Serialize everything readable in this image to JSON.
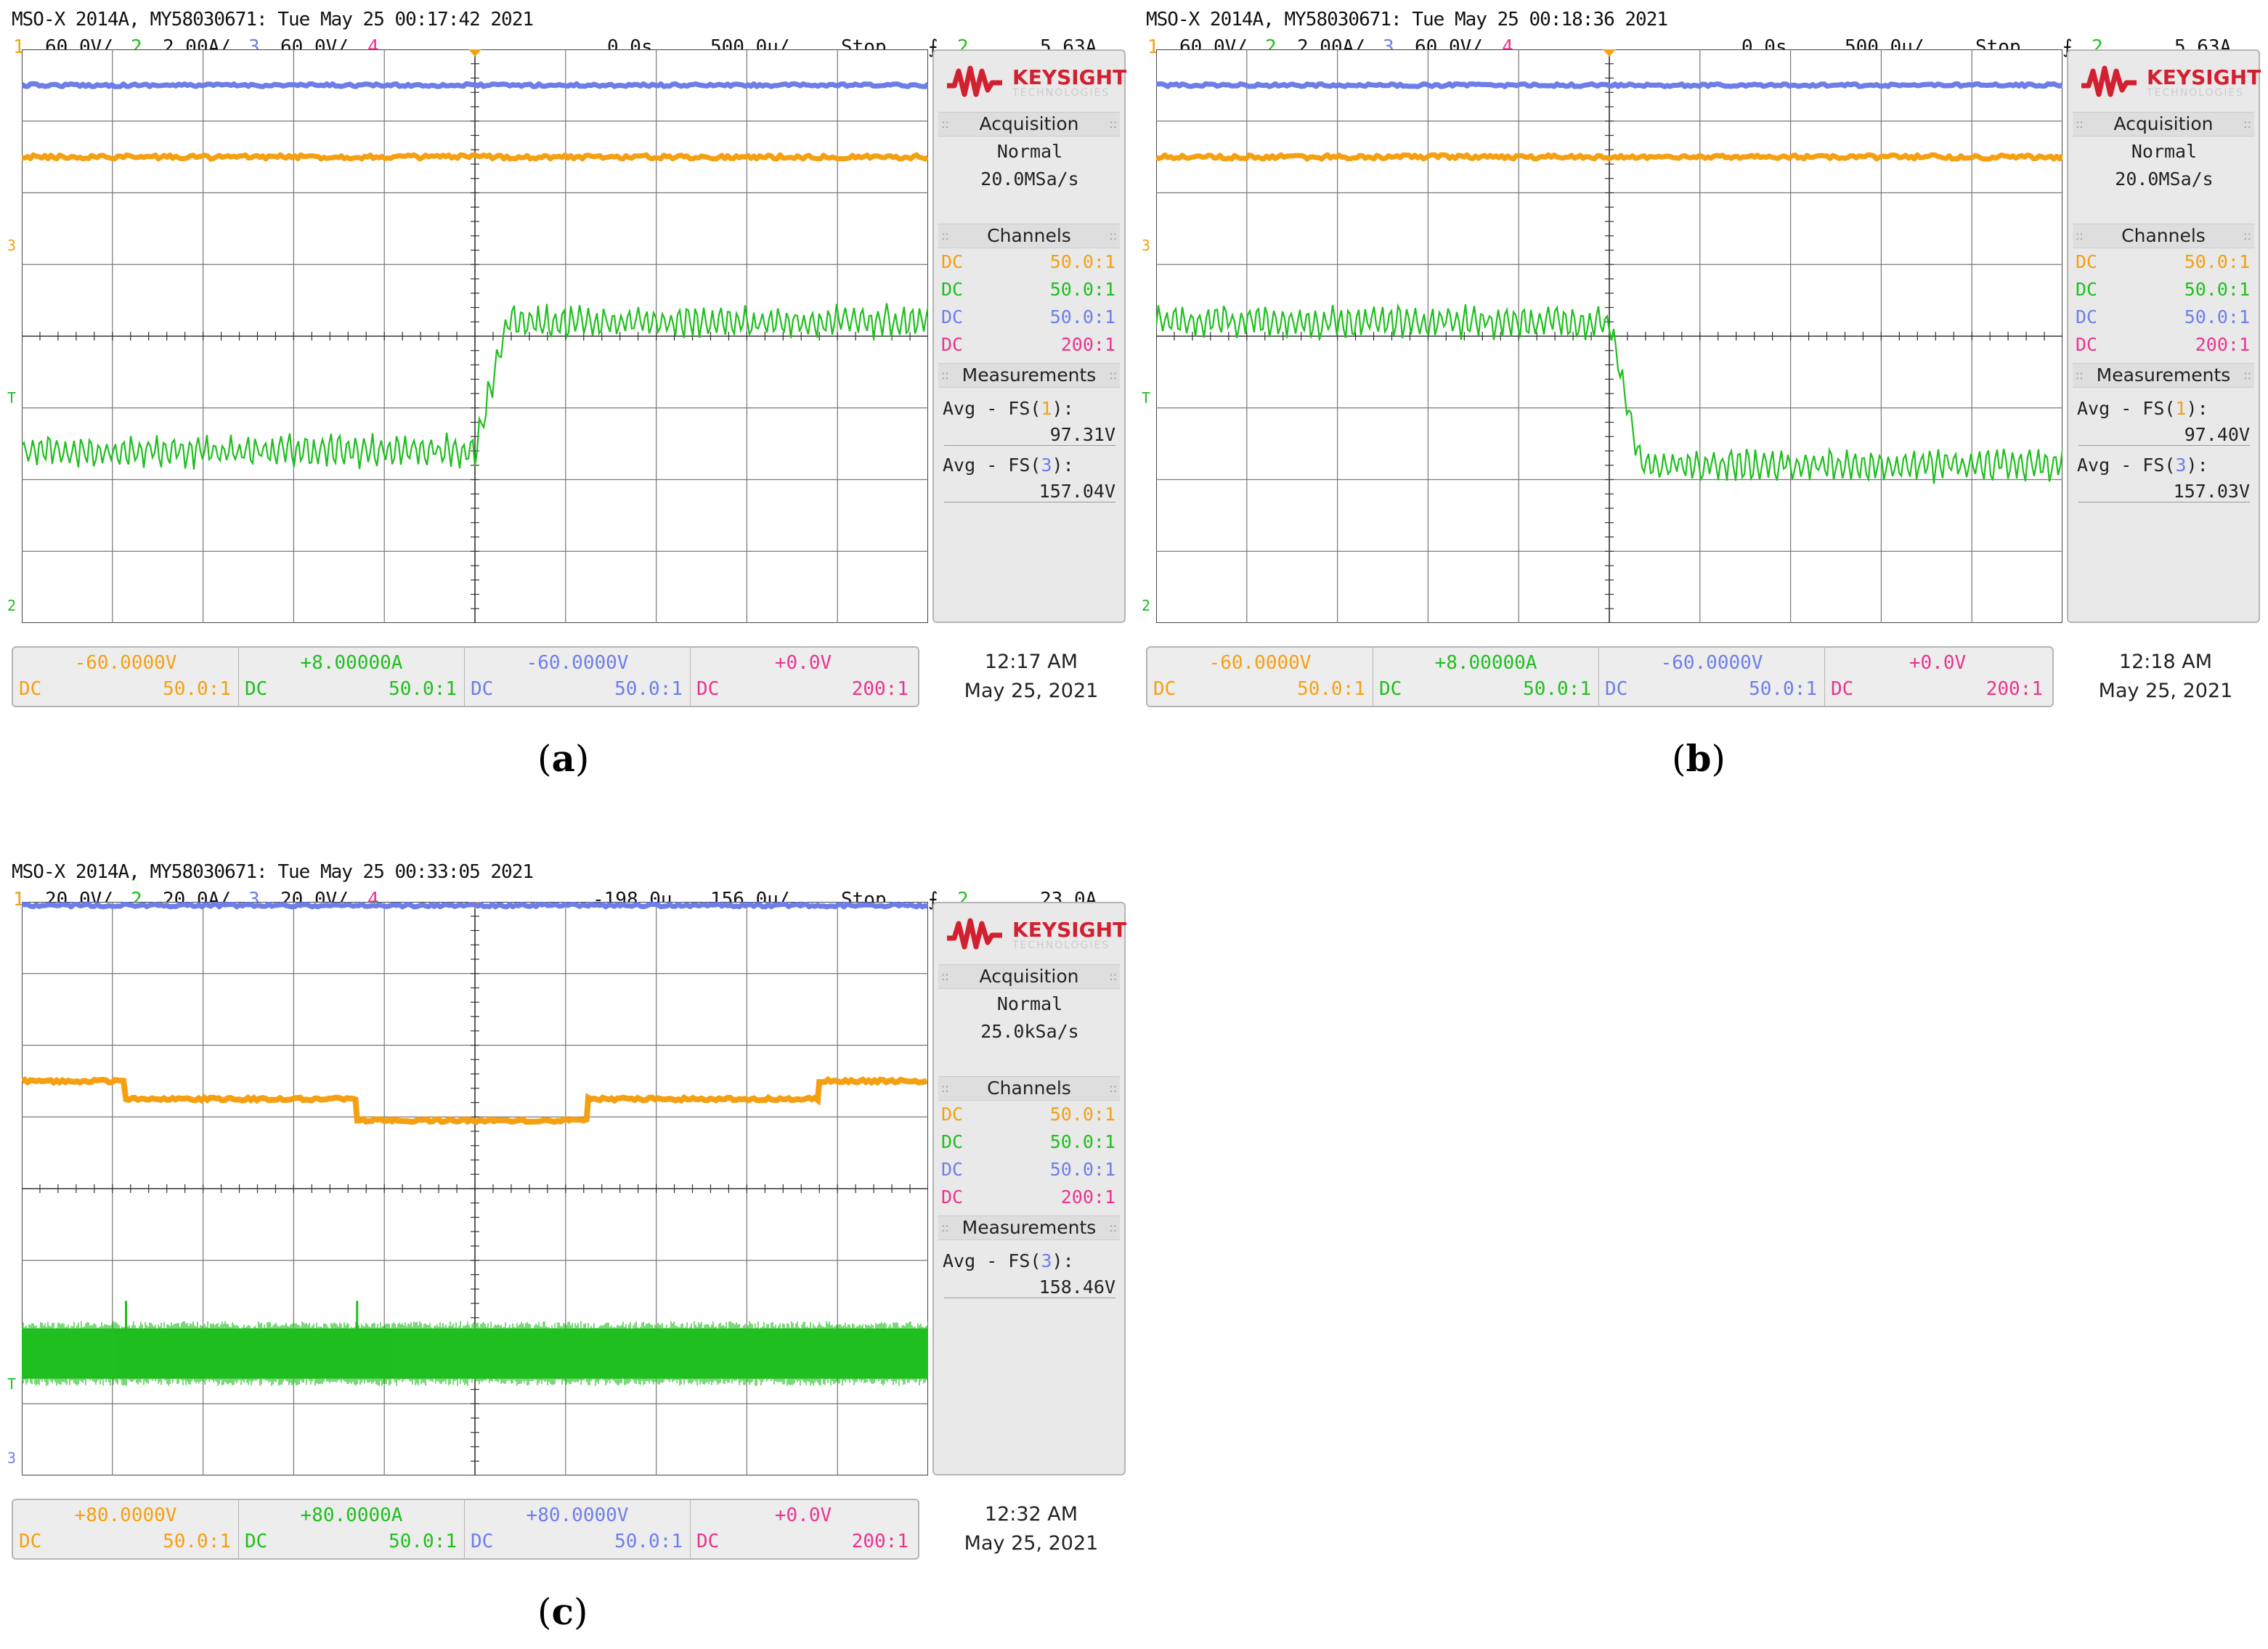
{
  "colors": {
    "ch1": "#f5a012",
    "ch2": "#1fbf1f",
    "ch3": "#6e7ee8",
    "ch4": "#e8358f",
    "grid": "#555555",
    "logo": "#d22030"
  },
  "common": {
    "logo_brand": "KEYSIGHT",
    "logo_sub": "TECHNOLOGIES",
    "acq_title": "Acquisition",
    "acq_mode": "Normal",
    "channels_title": "Channels",
    "meas_title": "Measurements",
    "channel_rows": [
      {
        "coupling": "DC",
        "probe": "50.0:1"
      },
      {
        "coupling": "DC",
        "probe": "50.0:1"
      },
      {
        "coupling": "DC",
        "probe": "50.0:1"
      },
      {
        "coupling": "DC",
        "probe": "200:1"
      }
    ],
    "stop": "Stop",
    "trigger_ch": "2",
    "bottom_probes": [
      "50.0:1",
      "50.0:1",
      "50.0:1",
      "200:1"
    ],
    "bottom_coupling": [
      "DC",
      "DC",
      "DC",
      "DC"
    ]
  },
  "panels": [
    {
      "title": "MSO-X 2014A, MY58030671: Tue May 25 00:17:42 2021",
      "ch": [
        "1",
        "60.0V/",
        "2",
        "2.00A/",
        "3",
        "60.0V/",
        "4"
      ],
      "time_pos": "0.0s",
      "time_div": "500.0µ/",
      "trigger_edge": "⨍",
      "trigger_level": "5.63A",
      "sample_rate": "20.0MSa/s",
      "measurements": [
        {
          "label": "Avg - FS(",
          "ch": "1",
          "value": "97.31V"
        },
        {
          "label": "Avg - FS(",
          "ch": "3",
          "value": "157.04V"
        }
      ],
      "offsets": [
        "-60.0000V",
        "+8.00000A",
        "-60.0000V",
        "+0.0V"
      ],
      "clock_time": "12:17 AM",
      "clock_date": "May 25, 2021",
      "caption_open": "(",
      "caption_letter": "a",
      "caption_close": ")",
      "markers": {
        "ch3": "3",
        "trig": "T",
        "ch2": "2"
      }
    },
    {
      "title": "MSO-X 2014A, MY58030671: Tue May 25 00:18:36 2021",
      "ch": [
        "1",
        "60.0V/",
        "2",
        "2.00A/",
        "3",
        "60.0V/",
        "4"
      ],
      "time_pos": "0.0s",
      "time_div": "500.0µ/",
      "trigger_edge": "⨍",
      "trigger_level": "5.63A",
      "sample_rate": "20.0MSa/s",
      "measurements": [
        {
          "label": "Avg - FS(",
          "ch": "1",
          "value": "97.40V"
        },
        {
          "label": "Avg - FS(",
          "ch": "3",
          "value": "157.03V"
        }
      ],
      "offsets": [
        "-60.0000V",
        "+8.00000A",
        "-60.0000V",
        "+0.0V"
      ],
      "clock_time": "12:18 AM",
      "clock_date": "May 25, 2021",
      "caption_open": "(",
      "caption_letter": "b",
      "caption_close": ")",
      "markers": {
        "ch3": "3",
        "trig": "T",
        "ch2": "2"
      }
    },
    {
      "title": "MSO-X 2014A, MY58030671: Tue May 25 00:33:05 2021",
      "ch": [
        "1",
        "20.0V/",
        "2",
        "20.0A/",
        "3",
        "20.0V/",
        "4"
      ],
      "time_pos": "-198.0µ",
      "time_div": "156.0µ/",
      "trigger_edge": "⨍",
      "trigger_level": "23.0A",
      "sample_rate": "25.0kSa/s",
      "measurements": [
        {
          "label": "Avg - FS(",
          "ch": "3",
          "value": "158.46V"
        }
      ],
      "offsets": [
        "+80.0000V",
        "+80.0000A",
        "+80.0000V",
        "+0.0V"
      ],
      "clock_time": "12:32 AM",
      "clock_date": "May 25, 2021",
      "caption_open": "(",
      "caption_letter": "c",
      "caption_close": ")",
      "markers": {
        "ch3": "3",
        "trig": "T",
        "ch2": ""
      }
    }
  ],
  "chart_data": [
    {
      "type": "line",
      "x_unit_div": "500.0µs",
      "xlim_div": [
        -5,
        5
      ],
      "ylim_div": [
        -4,
        4
      ],
      "series": [
        {
          "channel": "3",
          "trace": "flat",
          "level_div": 3.5,
          "noise_div": 0.02
        },
        {
          "channel": "1",
          "trace": "flat",
          "level_div": 2.5,
          "noise_div": 0.03
        },
        {
          "channel": "2",
          "trace": "step-up",
          "step_at_div": 0.0,
          "before_div": -1.6,
          "after_div": 0.2,
          "ripple_div": 0.35
        }
      ]
    },
    {
      "type": "line",
      "x_unit_div": "500.0µs",
      "xlim_div": [
        -5,
        5
      ],
      "ylim_div": [
        -4,
        4
      ],
      "series": [
        {
          "channel": "3",
          "trace": "flat",
          "level_div": 3.5,
          "noise_div": 0.02
        },
        {
          "channel": "1",
          "trace": "flat",
          "level_div": 2.5,
          "noise_div": 0.03
        },
        {
          "channel": "2",
          "trace": "step-down",
          "step_at_div": 0.0,
          "before_div": 0.2,
          "after_div": -1.8,
          "ripple_div": 0.35
        }
      ]
    },
    {
      "type": "line",
      "x_unit_div": "156.0µs",
      "xlim_div": [
        -5,
        5
      ],
      "ylim_div": [
        -4,
        4
      ],
      "series": [
        {
          "channel": "3",
          "trace": "flat",
          "level_div": 3.95,
          "noise_div": 0.02
        },
        {
          "channel": "1",
          "trace": "steps",
          "steps": [
            [
              -5,
              1.5
            ],
            [
              -3.85,
              1.25
            ],
            [
              -1.3,
              0.95
            ],
            [
              1.25,
              1.25
            ],
            [
              3.8,
              1.5
            ],
            [
              5,
              1.5
            ]
          ]
        },
        {
          "channel": "2",
          "trace": "noise-band",
          "level_div": -2.3,
          "band_div": 0.7,
          "spikes_div": [
            -3.85,
            -1.3
          ]
        }
      ]
    }
  ]
}
